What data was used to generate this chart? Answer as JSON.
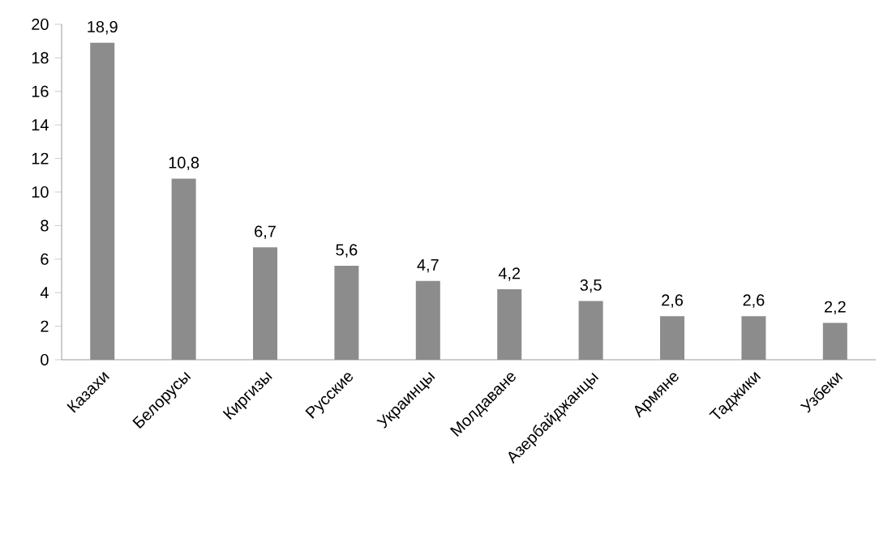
{
  "chart_data": {
    "type": "bar",
    "categories": [
      "Казахи",
      "Белорусы",
      "Киргизы",
      "Русские",
      "Украинцы",
      "Молдаване",
      "Азербайджанцы",
      "Армяне",
      "Таджики",
      "Узбеки"
    ],
    "values": [
      18.9,
      10.8,
      6.7,
      5.6,
      4.7,
      4.2,
      3.5,
      2.6,
      2.6,
      2.2
    ],
    "value_labels": [
      "18,9",
      "10,8",
      "6,7",
      "5,6",
      "4,7",
      "4,2",
      "3,5",
      "2,6",
      "2,6",
      "2,2"
    ],
    "color": "#8c8c8c",
    "ylim": [
      0,
      20
    ],
    "yticks": [
      0,
      2,
      4,
      6,
      8,
      10,
      12,
      14,
      16,
      18,
      20
    ],
    "grid": false
  }
}
